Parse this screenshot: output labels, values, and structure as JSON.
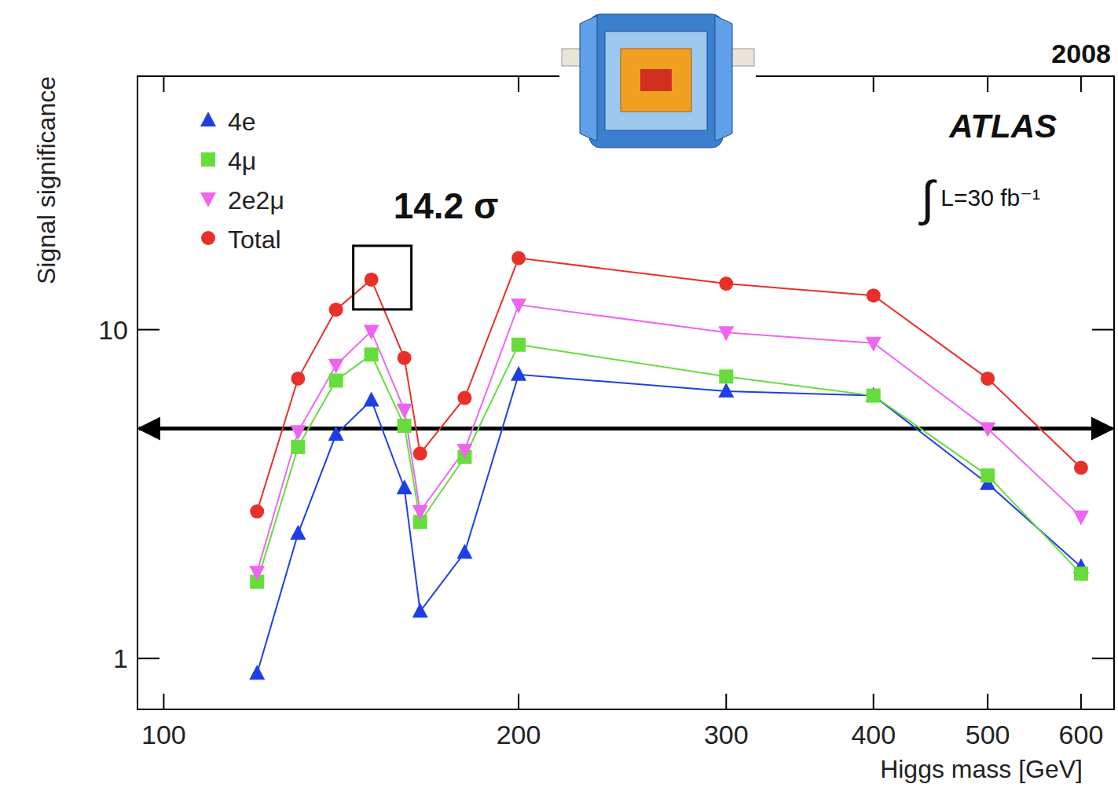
{
  "chart_data": {
    "type": "line",
    "x_label": "Higgs mass [GeV]",
    "y_label": "Signal significance",
    "log": true,
    "xlim": [
      95,
      640
    ],
    "ylim": [
      0.7,
      59
    ],
    "xticks": [
      100,
      200,
      300,
      400,
      500,
      600
    ],
    "yticks": [
      1,
      10
    ],
    "legend": "top-left",
    "x": [
      120,
      130,
      140,
      150,
      160,
      165,
      180,
      200,
      300,
      400,
      500,
      600
    ],
    "series": [
      {
        "name": "4e",
        "color": "#1f3fe6",
        "marker": "triangle-up",
        "values": [
          0.9,
          2.4,
          4.8,
          6.1,
          3.3,
          1.39,
          2.1,
          7.3,
          6.5,
          6.3,
          3.4,
          1.9
        ]
      },
      {
        "name": "4μ",
        "color": "#66dd3c",
        "marker": "square",
        "values": [
          1.71,
          4.4,
          7.0,
          8.4,
          5.1,
          2.6,
          4.1,
          9.0,
          7.2,
          6.3,
          3.6,
          1.81
        ]
      },
      {
        "name": "2e2μ",
        "color": "#ee66ee",
        "marker": "triangle-down",
        "values": [
          1.83,
          4.9,
          7.8,
          9.9,
          5.7,
          2.8,
          4.3,
          11.9,
          9.8,
          9.1,
          5.0,
          2.7
        ]
      },
      {
        "name": "Total",
        "color": "#e8302a",
        "marker": "circle",
        "values": [
          2.8,
          7.1,
          11.5,
          14.2,
          8.2,
          4.2,
          6.2,
          16.5,
          13.8,
          12.7,
          7.1,
          3.8
        ]
      }
    ],
    "threshold": 5,
    "annotations": [
      {
        "text": "14.2 σ",
        "x": 150,
        "y": 14.2
      }
    ],
    "year": "2008",
    "experiment": "ATLAS",
    "luminosity": "∫ L=30 fb⁻¹"
  }
}
